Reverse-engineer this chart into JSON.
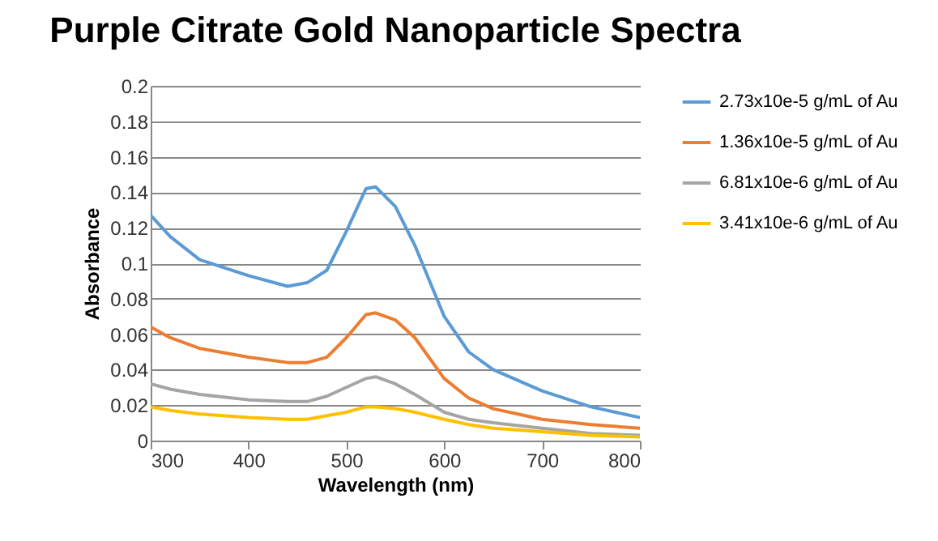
{
  "chart_data": {
    "type": "line",
    "title": "Purple Citrate Gold Nanoparticle Spectra",
    "xlabel": "Wavelength (nm)",
    "ylabel": "Absorbance",
    "x": [
      300,
      320,
      350,
      400,
      440,
      460,
      480,
      500,
      520,
      530,
      550,
      570,
      600,
      625,
      650,
      700,
      750,
      800
    ],
    "series": [
      {
        "name": "2.73x10e-5 g/mL of Au",
        "color": "#5b9bd5",
        "values": [
          0.127,
          0.115,
          0.102,
          0.093,
          0.087,
          0.089,
          0.096,
          0.118,
          0.142,
          0.143,
          0.132,
          0.11,
          0.07,
          0.05,
          0.04,
          0.028,
          0.019,
          0.013
        ]
      },
      {
        "name": "1.36x10e-5 g/mL of Au",
        "color": "#ed7d31",
        "values": [
          0.064,
          0.058,
          0.052,
          0.047,
          0.044,
          0.044,
          0.047,
          0.058,
          0.071,
          0.072,
          0.068,
          0.058,
          0.035,
          0.024,
          0.018,
          0.012,
          0.009,
          0.007
        ]
      },
      {
        "name": "6.81x10e-6 g/mL of Au",
        "color": "#a5a5a5",
        "values": [
          0.032,
          0.029,
          0.026,
          0.023,
          0.022,
          0.022,
          0.025,
          0.03,
          0.035,
          0.036,
          0.032,
          0.026,
          0.016,
          0.012,
          0.01,
          0.007,
          0.004,
          0.003
        ]
      },
      {
        "name": "3.41x10e-6 g/mL of Au",
        "color": "#ffc000",
        "values": [
          0.019,
          0.017,
          0.015,
          0.013,
          0.012,
          0.012,
          0.014,
          0.016,
          0.019,
          0.019,
          0.018,
          0.016,
          0.012,
          0.009,
          0.007,
          0.005,
          0.003,
          0.002
        ]
      }
    ],
    "xlim": [
      300,
      800
    ],
    "xticks": [
      300,
      400,
      500,
      600,
      700,
      800
    ],
    "ylim": [
      0,
      0.2
    ],
    "yticks": [
      0,
      0.02,
      0.04,
      0.06,
      0.08,
      0.1,
      0.12,
      0.14,
      0.16,
      0.18,
      0.2
    ],
    "grid": "y",
    "legend": "right",
    "marker": "none",
    "line_style": "solid"
  }
}
